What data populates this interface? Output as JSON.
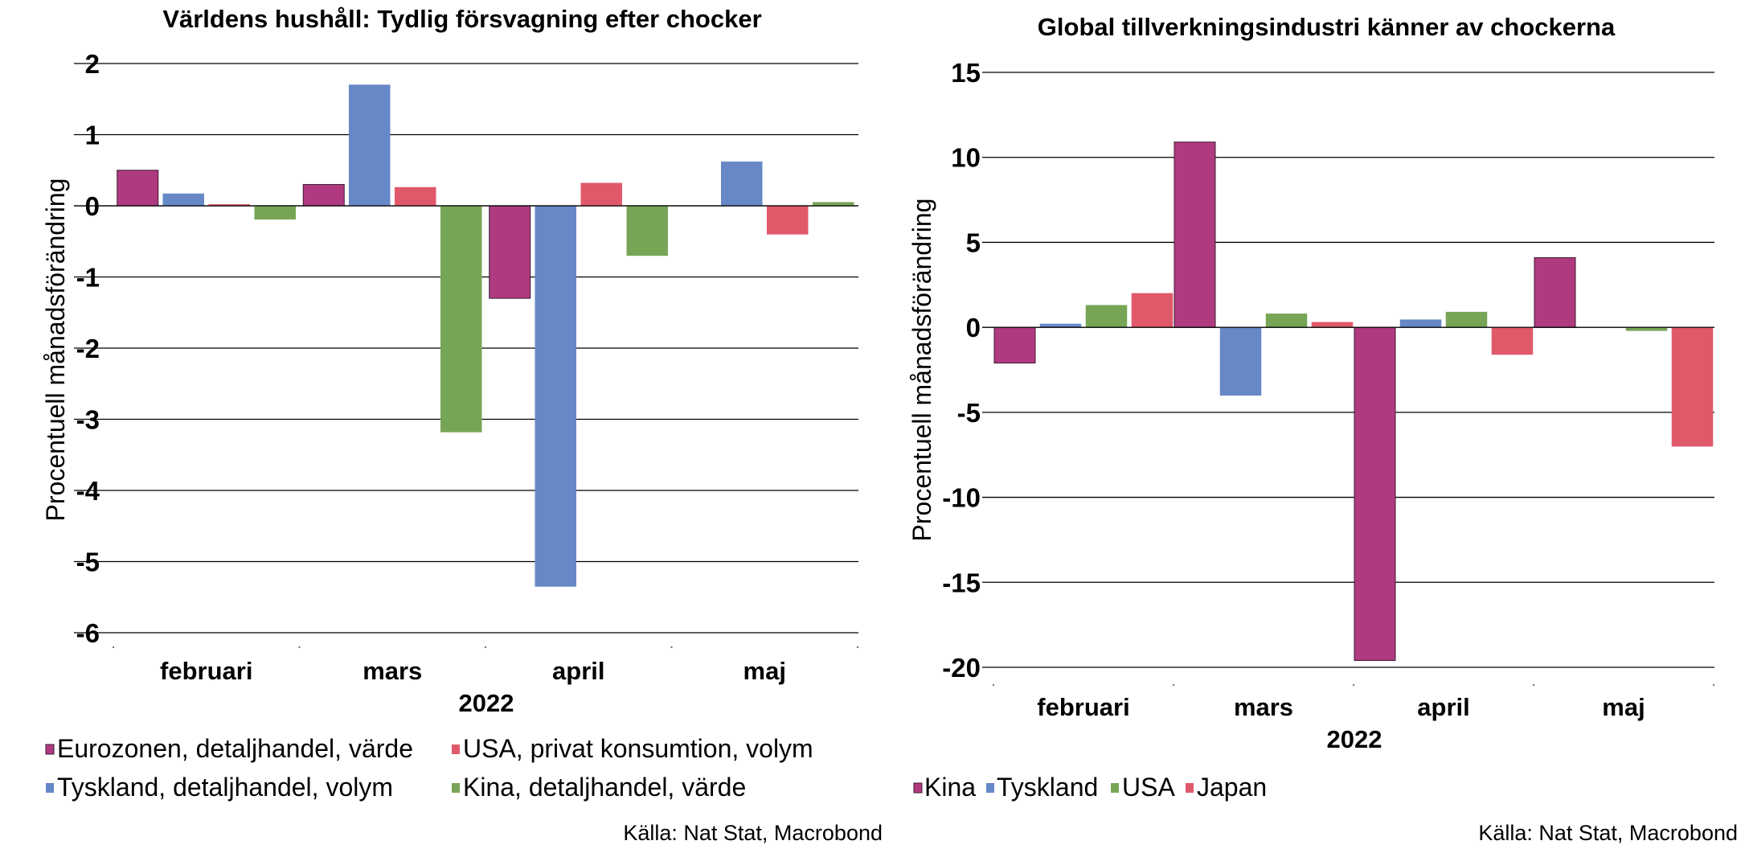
{
  "chart_data": [
    {
      "type": "bar",
      "title": "Världens hushåll: Tydlig försvagning efter chocker",
      "ylabel": "Procentuell månadsförändring",
      "xlabel": "2022",
      "categories": [
        "februari",
        "mars",
        "april",
        "maj"
      ],
      "ylim": [
        -6,
        2
      ],
      "yticks": [
        2,
        1,
        0,
        -1,
        -2,
        -3,
        -4,
        -5,
        -6
      ],
      "grid": true,
      "legend_position": "bottom",
      "series": [
        {
          "name": "Eurozonen, detaljhandel, värde",
          "color": "#b03a80",
          "values": [
            0.5,
            0.3,
            -1.3,
            null
          ]
        },
        {
          "name": "Tyskland, detaljhandel, volym",
          "color": "#6688c6",
          "values": [
            0.17,
            1.7,
            -5.35,
            0.62
          ]
        },
        {
          "name": "USA, privat konsumtion, volym",
          "color": "#e0596a",
          "values": [
            0.02,
            0.26,
            0.32,
            -0.4
          ]
        },
        {
          "name": "Kina, detaljhandel, värde",
          "color": "#77a556",
          "values": [
            -0.19,
            -3.18,
            -0.7,
            0.05
          ]
        }
      ],
      "source": "Källa: Nat Stat, Macrobond"
    },
    {
      "type": "bar",
      "title": "Global tillverkningsindustri känner av chockerna",
      "ylabel": "Procentuell månadsförändring",
      "xlabel": "2022",
      "categories": [
        "februari",
        "mars",
        "april",
        "maj"
      ],
      "ylim": [
        -20,
        15
      ],
      "yticks": [
        15,
        10,
        5,
        0,
        -5,
        -10,
        -15,
        -20
      ],
      "grid": true,
      "legend_position": "bottom",
      "series": [
        {
          "name": "Kina",
          "color": "#b03a80",
          "values": [
            -2.1,
            10.9,
            -19.6,
            4.1
          ]
        },
        {
          "name": "Tyskland",
          "color": "#6688c6",
          "values": [
            0.2,
            -4.0,
            0.45,
            null
          ]
        },
        {
          "name": "USA",
          "color": "#77a556",
          "values": [
            1.3,
            0.8,
            0.9,
            -0.2
          ]
        },
        {
          "name": "Japan",
          "color": "#e0596a",
          "values": [
            2.0,
            0.3,
            -1.6,
            -7.0
          ]
        }
      ],
      "source": "Källa: Nat Stat, Macrobond"
    }
  ]
}
